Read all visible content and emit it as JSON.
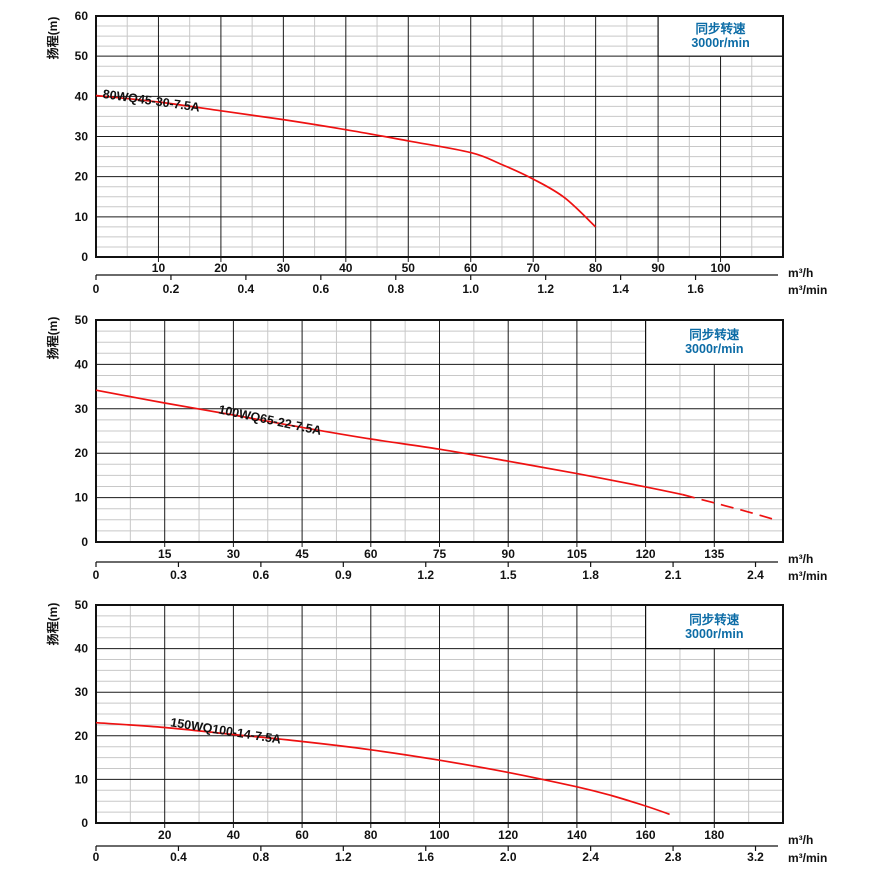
{
  "colors": {
    "background": "#ffffff",
    "curve_red": "#ee1111",
    "grid_major": "#1a1a1a",
    "grid_minor": "#c8c8c8",
    "frame": "#111111",
    "accent_blue": "#0c6ca6",
    "text": "#111111"
  },
  "speed_note": {
    "line1": "同步转速",
    "line2": "3000r/min"
  },
  "units": {
    "primary": "m³/h",
    "secondary": "m³/min",
    "head": "扬程(m)"
  },
  "chart_data": [
    {
      "type": "line",
      "model": "80WQ45-30-7.5A",
      "ylabel": "扬程(m)",
      "x_unit_primary": "m³/h",
      "x_unit_secondary": "m³/min",
      "speed_note_line1": "同步转速",
      "speed_note_line2": "3000r/min",
      "xlim": [
        0,
        110
      ],
      "ylim": [
        0,
        60
      ],
      "x_major": 10,
      "x_minor": 5,
      "y_major": 10,
      "y_minor": 2.5,
      "x_ticks_primary": [
        "10",
        "20",
        "30",
        "40",
        "50",
        "60",
        "70",
        "80",
        "90",
        "100"
      ],
      "x_ticks_secondary": [
        "0",
        "0.2",
        "0.4",
        "0.6",
        "0.8",
        "1.0",
        "1.2",
        "1.4",
        "1.6"
      ],
      "y_ticks": [
        "0",
        "10",
        "20",
        "30",
        "40",
        "50",
        "60"
      ],
      "points_flow_head": [
        [
          0,
          40.2
        ],
        [
          10,
          38.6
        ],
        [
          20,
          36.4
        ],
        [
          30,
          34.2
        ],
        [
          40,
          31.7
        ],
        [
          50,
          28.9
        ],
        [
          60,
          26.0
        ],
        [
          65,
          23.0
        ],
        [
          70,
          19.4
        ],
        [
          75,
          14.8
        ],
        [
          80,
          7.5
        ]
      ],
      "solid_until": null,
      "label_pos": [
        1.0,
        39.6
      ],
      "label_angle": 8,
      "note_box_from_x": 90,
      "note_box_down_to_y": 50
    },
    {
      "type": "line",
      "model": "100WQ65-22-7.5A",
      "ylabel": "扬程(m)",
      "x_unit_primary": "m³/h",
      "x_unit_secondary": "m³/min",
      "speed_note_line1": "同步转速",
      "speed_note_line2": "3000r/min",
      "xlim": [
        0,
        150
      ],
      "ylim": [
        0,
        50
      ],
      "x_major": 15,
      "x_minor": 7.5,
      "y_major": 10,
      "y_minor": 2.5,
      "x_ticks_primary": [
        "15",
        "30",
        "45",
        "60",
        "75",
        "90",
        "105",
        "120",
        "135"
      ],
      "x_ticks_secondary": [
        "0",
        "0.3",
        "0.6",
        "0.9",
        "1.2",
        "1.5",
        "1.8",
        "2.1",
        "2.4"
      ],
      "y_ticks": [
        "0",
        "10",
        "20",
        "30",
        "40",
        "50"
      ],
      "points_flow_head": [
        [
          0,
          34.2
        ],
        [
          15,
          31.3
        ],
        [
          30,
          28.6
        ],
        [
          45,
          25.8
        ],
        [
          60,
          23.2
        ],
        [
          75,
          20.9
        ],
        [
          90,
          18.2
        ],
        [
          105,
          15.4
        ],
        [
          120,
          12.4
        ],
        [
          128,
          10.7
        ],
        [
          135,
          8.8
        ],
        [
          142,
          6.9
        ],
        [
          148,
          5.1
        ]
      ],
      "solid_until": 128,
      "label_pos": [
        26.6,
        29.0
      ],
      "label_angle": 12,
      "note_box_from_x": 120,
      "note_box_down_to_y": 40
    },
    {
      "type": "line",
      "model": "150WQ100-14-7.5A",
      "ylabel": "扬程(m)",
      "x_unit_primary": "m³/h",
      "x_unit_secondary": "m³/min",
      "speed_note_line1": "同步转速",
      "speed_note_line2": "3000r/min",
      "xlim": [
        0,
        200
      ],
      "ylim": [
        0,
        50
      ],
      "x_major": 20,
      "x_minor": 10,
      "y_major": 10,
      "y_minor": 2.5,
      "x_ticks_primary": [
        "20",
        "40",
        "60",
        "80",
        "100",
        "120",
        "140",
        "160",
        "180"
      ],
      "x_ticks_secondary": [
        "0",
        "0.4",
        "0.8",
        "1.2",
        "1.6",
        "2.0",
        "2.4",
        "2.8",
        "3.2"
      ],
      "y_ticks": [
        "0",
        "10",
        "20",
        "30",
        "40",
        "50"
      ],
      "points_flow_head": [
        [
          0,
          23.0
        ],
        [
          20,
          21.9
        ],
        [
          40,
          20.3
        ],
        [
          60,
          18.7
        ],
        [
          80,
          16.8
        ],
        [
          100,
          14.4
        ],
        [
          120,
          11.6
        ],
        [
          140,
          8.3
        ],
        [
          150,
          6.3
        ],
        [
          160,
          3.9
        ],
        [
          167,
          2.0
        ]
      ],
      "solid_until": null,
      "label_pos": [
        21.5,
        22.2
      ],
      "label_angle": 9,
      "note_box_from_x": 160,
      "note_box_down_to_y": 40
    }
  ]
}
